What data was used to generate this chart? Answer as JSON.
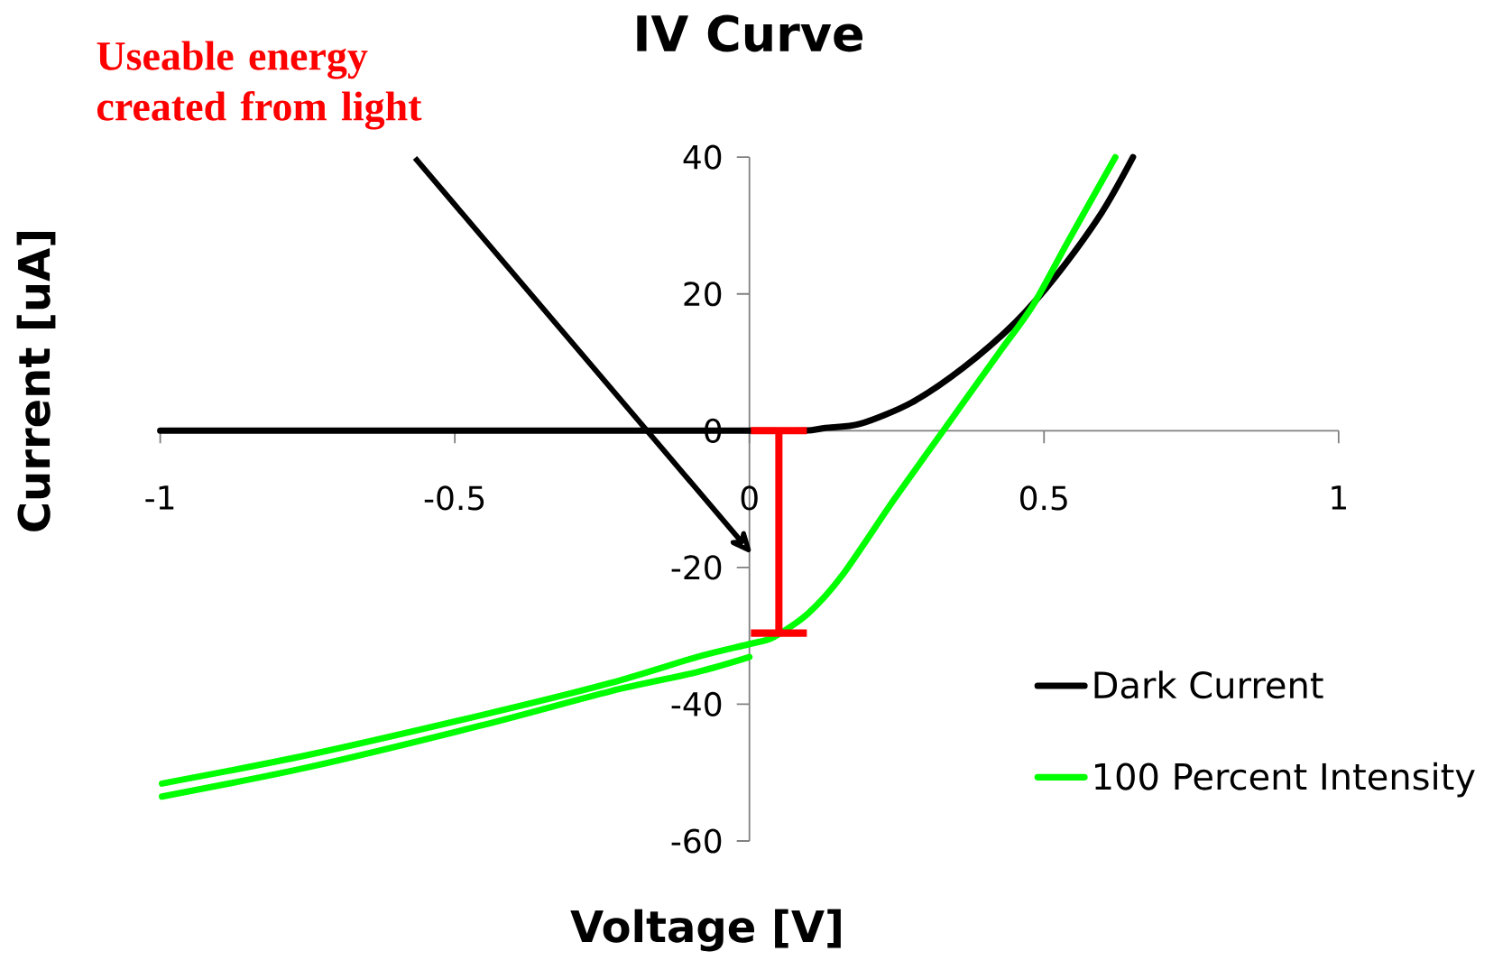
{
  "chart_data": {
    "type": "line",
    "title": "IV Curve",
    "xlabel": "Voltage [V]",
    "ylabel": "Current [uA]",
    "xlim": [
      -1,
      1
    ],
    "ylim": [
      -60,
      40
    ],
    "xticks": [
      -1,
      -0.5,
      0,
      0.5,
      1
    ],
    "yticks": [
      -60,
      -40,
      -20,
      0,
      20,
      40
    ],
    "grid": false,
    "legend": "bottom right",
    "annotations": [
      "Useable energy created from light"
    ],
    "series": [
      {
        "name": "Dark Current",
        "color": "#000000",
        "x": [
          -1,
          -0.5,
          0,
          0.094,
          0.129,
          0.188,
          0.275,
          0.363,
          0.451,
          0.522,
          0.598,
          0.651
        ],
        "values": [
          0,
          0,
          0,
          0,
          0.4,
          1.0,
          4.1,
          9.2,
          15.8,
          22.8,
          31.9,
          40
        ]
      },
      {
        "name": "100 Percent Intensity",
        "color": "#00ff00",
        "x": [
          -0.997,
          -0.748,
          -0.455,
          -0.236,
          -0.089,
          0,
          0.041,
          0.1,
          0.158,
          0.246,
          0.334,
          0.422,
          0.481,
          0.539,
          0.621
        ],
        "values": [
          -51.6,
          -47.4,
          -41.6,
          -36.9,
          -33.1,
          -31.2,
          -30.2,
          -26.7,
          -21.1,
          -10,
          0.6,
          11.2,
          18.3,
          27.4,
          40
        ]
      },
      {
        "color": "#00ff00",
        "x": [
          -0.997,
          -0.748,
          -0.455,
          -0.236,
          -0.089,
          0
        ],
        "values": [
          -53.5,
          -49.2,
          -43.1,
          -38.1,
          -35.3,
          -33.1
        ]
      },
      {
        "color": "#ff0000",
        "x": [
          0.05,
          0.05
        ],
        "values": [
          0,
          -29.6
        ]
      }
    ]
  }
}
